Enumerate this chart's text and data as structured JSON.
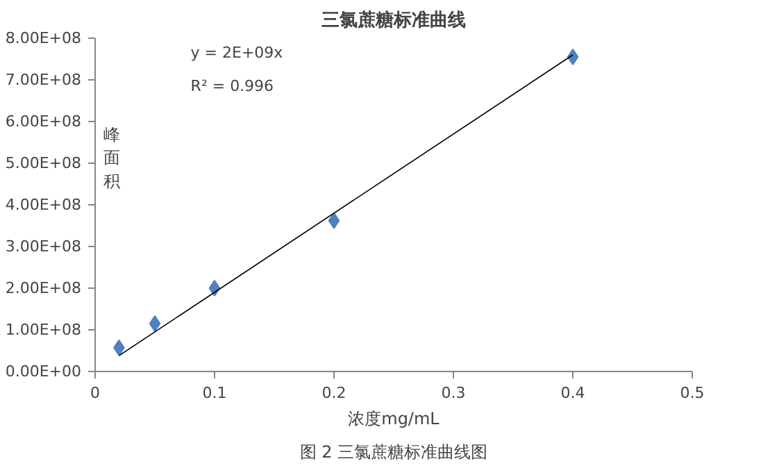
{
  "chart_data": {
    "type": "scatter",
    "title": "三氯蔗糖标准曲线",
    "xlabel": "浓度mg/mL",
    "ylabel": "峰面积",
    "annotations": [
      "y = 2E+09x",
      "R² = 0.996",
      "图 2 三氯蔗糖标准曲线图"
    ],
    "series": [
      {
        "type": "scatter",
        "color": "#4f81bd",
        "x": [
          0.02,
          0.05,
          0.1,
          0.2,
          0.4
        ],
        "values": [
          57000000,
          115000000,
          200000000,
          362000000,
          755000000
        ],
        "marker": "diamond"
      },
      {
        "type": "line",
        "color": "#000000",
        "x": [
          0.02,
          0.4
        ],
        "values": [
          38000000,
          760000000
        ],
        "marker": "none",
        "line_style": "solid"
      }
    ],
    "xlim": [
      0,
      0.5
    ],
    "xticks": [
      0,
      0.1,
      0.2,
      0.3,
      0.4,
      0.5
    ],
    "ylim": [
      0,
      800000000
    ],
    "yticks": [
      {
        "value": 0,
        "label": "0.00E+00"
      },
      {
        "value": 100000000,
        "label": "1.00E+08"
      },
      {
        "value": 200000000,
        "label": "2.00E+08"
      },
      {
        "value": 300000000,
        "label": "3.00E+08"
      },
      {
        "value": 400000000,
        "label": "4.00E+08"
      },
      {
        "value": 500000000,
        "label": "5.00E+08"
      },
      {
        "value": 600000000,
        "label": "6.00E+08"
      },
      {
        "value": 700000000,
        "label": "7.00E+08"
      },
      {
        "value": 800000000,
        "label": "8.00E+08"
      }
    ],
    "grid": false
  }
}
